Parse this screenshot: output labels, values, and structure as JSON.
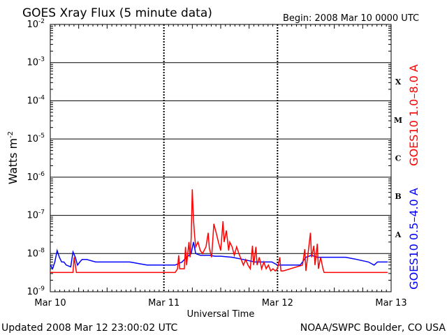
{
  "chart_data": {
    "type": "line",
    "title": "GOES Xray Flux (5 minute data)",
    "begin_label": "Begin:  2008 Mar 10 0000 UTC",
    "xlabel": "Universal Time",
    "ylabel": "Watts m",
    "ylabel_sup": "-2",
    "ylim": [
      1e-09,
      0.01
    ],
    "yscale": "log",
    "xlim_days": [
      0,
      3
    ],
    "x_tick_labels": [
      "Mar 10",
      "Mar 11",
      "Mar 12",
      "Mar 13"
    ],
    "y_tick_labels": [
      {
        "base": "10",
        "exp": "-9"
      },
      {
        "base": "10",
        "exp": "-8"
      },
      {
        "base": "10",
        "exp": "-7"
      },
      {
        "base": "10",
        "exp": "-6"
      },
      {
        "base": "10",
        "exp": "-5"
      },
      {
        "base": "10",
        "exp": "-4"
      },
      {
        "base": "10",
        "exp": "-3"
      },
      {
        "base": "10",
        "exp": "-2"
      }
    ],
    "flare_classes": [
      "A",
      "B",
      "C",
      "M",
      "X"
    ],
    "grid": true,
    "series": [
      {
        "name": "GOES10 1.0–8.0 A",
        "color": "#ff0000",
        "points": [
          [
            0.0,
            3.2e-09
          ],
          [
            0.2,
            3.2e-09
          ],
          [
            0.21,
            8e-09
          ],
          [
            0.23,
            3.2e-09
          ],
          [
            0.3,
            3.2e-09
          ],
          [
            0.5,
            3.2e-09
          ],
          [
            0.8,
            3.2e-09
          ],
          [
            1.0,
            3.2e-09
          ],
          [
            1.1,
            3.2e-09
          ],
          [
            1.12,
            4e-09
          ],
          [
            1.13,
            9e-09
          ],
          [
            1.14,
            4e-09
          ],
          [
            1.18,
            4e-09
          ],
          [
            1.19,
            1.5e-08
          ],
          [
            1.2,
            5e-09
          ],
          [
            1.22,
            2e-08
          ],
          [
            1.23,
            8e-09
          ],
          [
            1.24,
            2.5e-08
          ],
          [
            1.25,
            4.8e-07
          ],
          [
            1.26,
            8e-08
          ],
          [
            1.27,
            3e-08
          ],
          [
            1.28,
            1.5e-08
          ],
          [
            1.3,
            2e-08
          ],
          [
            1.32,
            1.2e-08
          ],
          [
            1.34,
            1e-08
          ],
          [
            1.37,
            1.5e-08
          ],
          [
            1.39,
            3.5e-08
          ],
          [
            1.4,
            1.4e-08
          ],
          [
            1.42,
            8e-09
          ],
          [
            1.44,
            6e-08
          ],
          [
            1.46,
            3.5e-08
          ],
          [
            1.48,
            2e-08
          ],
          [
            1.5,
            1.2e-08
          ],
          [
            1.52,
            7e-08
          ],
          [
            1.53,
            2e-08
          ],
          [
            1.55,
            4e-08
          ],
          [
            1.57,
            1.2e-08
          ],
          [
            1.58,
            2e-08
          ],
          [
            1.6,
            1.5e-08
          ],
          [
            1.62,
            9e-09
          ],
          [
            1.64,
            1.5e-08
          ],
          [
            1.66,
            1e-08
          ],
          [
            1.68,
            7e-09
          ],
          [
            1.7,
            5e-09
          ],
          [
            1.72,
            7e-09
          ],
          [
            1.74,
            5e-09
          ],
          [
            1.76,
            4e-09
          ],
          [
            1.78,
            1.6e-08
          ],
          [
            1.79,
            5e-09
          ],
          [
            1.81,
            1.5e-08
          ],
          [
            1.82,
            5e-09
          ],
          [
            1.84,
            8e-09
          ],
          [
            1.86,
            4e-09
          ],
          [
            1.88,
            6e-09
          ],
          [
            1.9,
            4e-09
          ],
          [
            1.92,
            5e-09
          ],
          [
            1.94,
            3.5e-09
          ],
          [
            1.96,
            4e-09
          ],
          [
            1.98,
            3.5e-09
          ],
          [
            2.0,
            4e-09
          ],
          [
            2.02,
            8e-09
          ],
          [
            2.03,
            3.5e-09
          ],
          [
            2.05,
            3.5e-09
          ],
          [
            2.22,
            5e-09
          ],
          [
            2.24,
            1.3e-08
          ],
          [
            2.25,
            3.5e-09
          ],
          [
            2.27,
            1.1e-08
          ],
          [
            2.29,
            3.5e-08
          ],
          [
            2.3,
            8e-09
          ],
          [
            2.32,
            1.6e-08
          ],
          [
            2.33,
            5e-09
          ],
          [
            2.35,
            1.8e-08
          ],
          [
            2.36,
            4e-09
          ],
          [
            2.38,
            8e-09
          ],
          [
            2.4,
            4e-09
          ],
          [
            2.41,
            3.2e-09
          ],
          [
            2.6,
            3.2e-09
          ],
          [
            2.8,
            3.2e-09
          ],
          [
            2.97,
            3.2e-09
          ]
        ]
      },
      {
        "name": "GOES10 0.5–4.0 A",
        "color": "#0000ff",
        "points": [
          [
            0.0,
            5e-09
          ],
          [
            0.02,
            4e-09
          ],
          [
            0.04,
            6e-09
          ],
          [
            0.06,
            1.2e-08
          ],
          [
            0.08,
            8e-09
          ],
          [
            0.1,
            6e-09
          ],
          [
            0.12,
            6e-09
          ],
          [
            0.14,
            5e-09
          ],
          [
            0.18,
            4.5e-09
          ],
          [
            0.2,
            1.1e-08
          ],
          [
            0.22,
            8e-09
          ],
          [
            0.24,
            5e-09
          ],
          [
            0.26,
            6e-09
          ],
          [
            0.28,
            7e-09
          ],
          [
            0.32,
            7e-09
          ],
          [
            0.4,
            6e-09
          ],
          [
            0.55,
            6e-09
          ],
          [
            0.7,
            6e-09
          ],
          [
            0.85,
            5e-09
          ],
          [
            0.9,
            5e-09
          ],
          [
            1.0,
            5e-09
          ],
          [
            1.1,
            5e-09
          ],
          [
            1.16,
            6e-09
          ],
          [
            1.2,
            8e-09
          ],
          [
            1.24,
            1e-08
          ],
          [
            1.26,
            2e-08
          ],
          [
            1.28,
            1e-08
          ],
          [
            1.32,
            9e-09
          ],
          [
            1.4,
            9e-09
          ],
          [
            1.45,
            8.5e-09
          ],
          [
            1.5,
            8.5e-09
          ],
          [
            1.6,
            8e-09
          ],
          [
            1.7,
            7e-09
          ],
          [
            1.8,
            6e-09
          ],
          [
            1.9,
            6e-09
          ],
          [
            1.95,
            6e-09
          ],
          [
            2.0,
            5e-09
          ],
          [
            2.2,
            5e-09
          ],
          [
            2.25,
            8e-09
          ],
          [
            2.3,
            9e-09
          ],
          [
            2.35,
            8e-09
          ],
          [
            2.4,
            8e-09
          ],
          [
            2.5,
            8e-09
          ],
          [
            2.6,
            8e-09
          ],
          [
            2.7,
            7e-09
          ],
          [
            2.8,
            6e-09
          ],
          [
            2.85,
            5e-09
          ],
          [
            2.88,
            6e-09
          ],
          [
            2.97,
            6e-09
          ]
        ]
      }
    ]
  },
  "footer": {
    "updated": "Updated 2008 Mar 12 23:00:02 UTC",
    "credit": "NOAA/SWPC Boulder, CO USA"
  }
}
